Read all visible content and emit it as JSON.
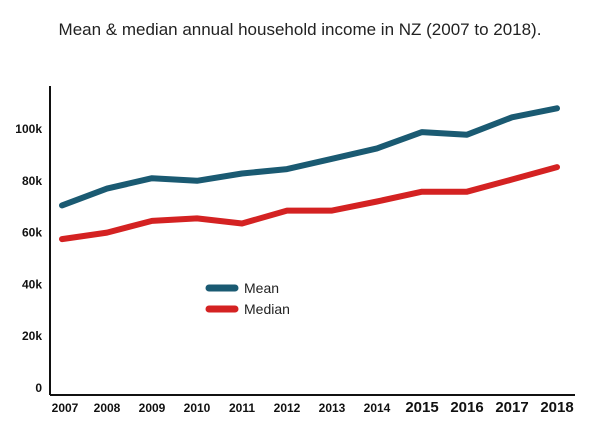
{
  "chart_data": {
    "type": "line",
    "title": "Mean & median annual household income in NZ (2007 to 2018).",
    "x": [
      "2007",
      "2008",
      "2009",
      "2010",
      "2011",
      "2012",
      "2013",
      "2014",
      "2015",
      "2016",
      "2017",
      "2018"
    ],
    "series": [
      {
        "name": "Mean",
        "color": "#1a5a72",
        "values": [
          70500,
          77000,
          81000,
          80000,
          82800,
          84500,
          88500,
          92500,
          98800,
          97800,
          104500,
          108000
        ]
      },
      {
        "name": "Median",
        "color": "#d42222",
        "values": [
          57500,
          60000,
          64500,
          65500,
          63500,
          68500,
          68500,
          72000,
          75800,
          75800,
          80500,
          85300
        ]
      }
    ],
    "yticks": [
      "0",
      "20k",
      "40k",
      "60k",
      "80k",
      "100k"
    ],
    "ytick_values": [
      0,
      20000,
      40000,
      60000,
      80000,
      100000
    ],
    "ylim": [
      0,
      110000
    ],
    "xlabel": "",
    "ylabel": "",
    "grid": false,
    "legend": "middle-left"
  }
}
